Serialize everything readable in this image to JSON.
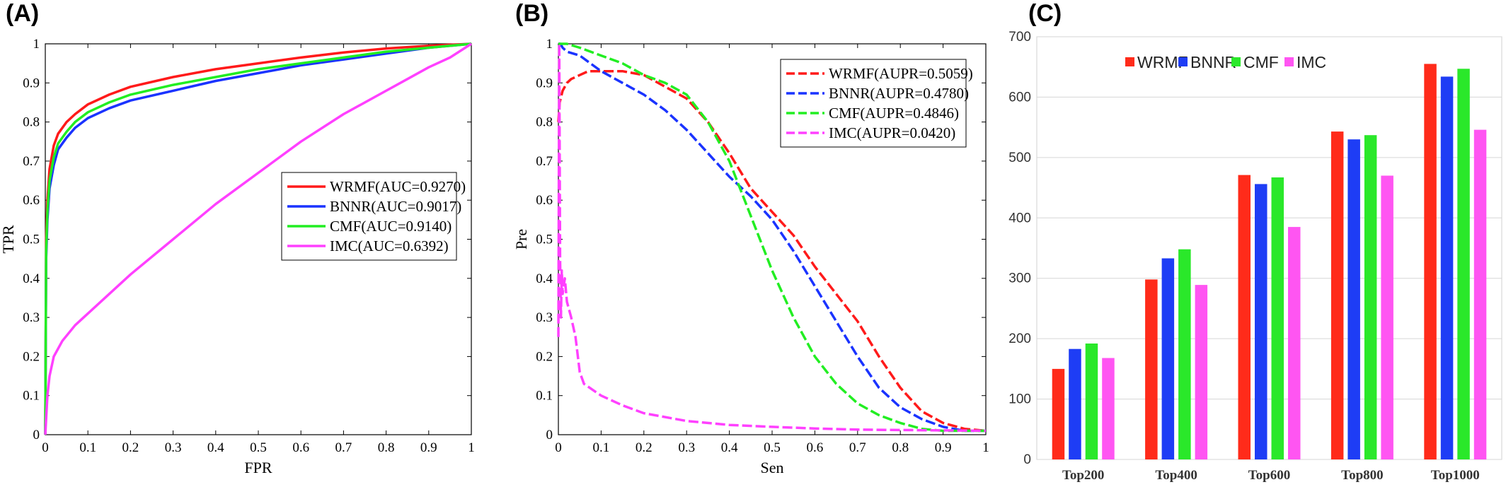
{
  "panel_labels": [
    "(A)",
    "(B)",
    "(C)"
  ],
  "colors": {
    "WRMF": "#ff1a1a",
    "BNNR": "#1a33ff",
    "CMF": "#22ee22",
    "IMC": "#ff40ff",
    "bar_WRMF": "#ff2b1a",
    "bar_BNNR": "#1e3df5",
    "bar_CMF": "#2ae82a",
    "bar_IMC": "#ff55f2"
  },
  "chart_data": [
    {
      "type": "line",
      "panel": "(A)",
      "title": "",
      "xlabel": "FPR",
      "ylabel": "TPR",
      "xlim": [
        0,
        1
      ],
      "ylim": [
        0,
        1
      ],
      "xticks": [
        "0",
        "0.1",
        "0.2",
        "0.3",
        "0.4",
        "0.5",
        "0.6",
        "0.7",
        "0.8",
        "0.9",
        "1"
      ],
      "yticks": [
        "0",
        "0.1",
        "0.2",
        "0.3",
        "0.4",
        "0.5",
        "0.6",
        "0.7",
        "0.8",
        "0.9",
        "1"
      ],
      "grid": false,
      "legend_position": "center-right",
      "series": [
        {
          "name": "WRMF(AUC=0.9270)",
          "key": "WRMF",
          "style": "solid",
          "x": [
            0,
            0.002,
            0.005,
            0.01,
            0.02,
            0.03,
            0.05,
            0.07,
            0.1,
            0.15,
            0.2,
            0.3,
            0.4,
            0.5,
            0.6,
            0.7,
            0.8,
            0.9,
            1.0
          ],
          "y": [
            0,
            0.5,
            0.6,
            0.68,
            0.74,
            0.77,
            0.8,
            0.82,
            0.845,
            0.87,
            0.89,
            0.915,
            0.935,
            0.95,
            0.965,
            0.978,
            0.988,
            0.995,
            1.0
          ]
        },
        {
          "name": "BNNR(AUC=0.9017)",
          "key": "BNNR",
          "style": "solid",
          "x": [
            0,
            0.002,
            0.005,
            0.01,
            0.02,
            0.03,
            0.05,
            0.07,
            0.1,
            0.15,
            0.2,
            0.3,
            0.4,
            0.5,
            0.6,
            0.7,
            0.8,
            0.9,
            1.0
          ],
          "y": [
            0,
            0.45,
            0.55,
            0.63,
            0.69,
            0.73,
            0.76,
            0.785,
            0.81,
            0.835,
            0.855,
            0.88,
            0.905,
            0.925,
            0.945,
            0.96,
            0.975,
            0.99,
            1.0
          ]
        },
        {
          "name": "CMF(AUC=0.9140)",
          "key": "CMF",
          "style": "solid",
          "x": [
            0,
            0.002,
            0.005,
            0.01,
            0.02,
            0.03,
            0.05,
            0.07,
            0.1,
            0.15,
            0.2,
            0.3,
            0.4,
            0.5,
            0.6,
            0.7,
            0.8,
            0.9,
            1.0
          ],
          "y": [
            0,
            0.47,
            0.57,
            0.65,
            0.71,
            0.745,
            0.775,
            0.8,
            0.825,
            0.85,
            0.87,
            0.895,
            0.915,
            0.935,
            0.95,
            0.965,
            0.98,
            0.99,
            1.0
          ]
        },
        {
          "name": "IMC(AUC=0.6392)",
          "key": "IMC",
          "style": "solid",
          "x": [
            0,
            0.005,
            0.01,
            0.02,
            0.04,
            0.07,
            0.1,
            0.15,
            0.2,
            0.3,
            0.4,
            0.5,
            0.6,
            0.7,
            0.8,
            0.85,
            0.9,
            0.95,
            1.0
          ],
          "y": [
            0,
            0.1,
            0.15,
            0.2,
            0.24,
            0.28,
            0.31,
            0.36,
            0.41,
            0.5,
            0.59,
            0.67,
            0.75,
            0.82,
            0.88,
            0.91,
            0.94,
            0.965,
            1.0
          ]
        }
      ]
    },
    {
      "type": "line",
      "panel": "(B)",
      "title": "",
      "xlabel": "Sen",
      "ylabel": "Pre",
      "xlim": [
        0,
        1
      ],
      "ylim": [
        0,
        1
      ],
      "xticks": [
        "0",
        "0.1",
        "0.2",
        "0.3",
        "0.4",
        "0.5",
        "0.6",
        "0.7",
        "0.8",
        "0.9",
        "1"
      ],
      "yticks": [
        "0",
        "0.1",
        "0.2",
        "0.3",
        "0.4",
        "0.5",
        "0.6",
        "0.7",
        "0.8",
        "0.9",
        "1"
      ],
      "grid": false,
      "legend_position": "top-right",
      "series": [
        {
          "name": "WRMF(AUPR=0.5059)",
          "key": "WRMF",
          "style": "dashed",
          "x": [
            0,
            0.003,
            0.01,
            0.02,
            0.03,
            0.05,
            0.07,
            0.1,
            0.15,
            0.2,
            0.25,
            0.3,
            0.35,
            0.4,
            0.45,
            0.5,
            0.55,
            0.6,
            0.65,
            0.7,
            0.75,
            0.8,
            0.85,
            0.9,
            0.95,
            1.0
          ],
          "y": [
            0.8,
            0.85,
            0.88,
            0.9,
            0.91,
            0.92,
            0.93,
            0.93,
            0.93,
            0.92,
            0.89,
            0.86,
            0.8,
            0.72,
            0.63,
            0.57,
            0.51,
            0.43,
            0.36,
            0.29,
            0.2,
            0.12,
            0.06,
            0.03,
            0.015,
            0.01
          ]
        },
        {
          "name": "BNNR(AUPR=0.4780)",
          "key": "BNNR",
          "style": "dashed",
          "x": [
            0,
            0.005,
            0.01,
            0.02,
            0.05,
            0.1,
            0.15,
            0.2,
            0.25,
            0.3,
            0.35,
            0.4,
            0.45,
            0.5,
            0.55,
            0.6,
            0.65,
            0.7,
            0.75,
            0.8,
            0.85,
            0.9,
            0.95,
            1.0
          ],
          "y": [
            1.0,
            1.0,
            0.99,
            0.98,
            0.97,
            0.93,
            0.9,
            0.87,
            0.83,
            0.78,
            0.72,
            0.66,
            0.61,
            0.55,
            0.47,
            0.38,
            0.29,
            0.2,
            0.12,
            0.07,
            0.04,
            0.02,
            0.01,
            0.01
          ]
        },
        {
          "name": "CMF(AUPR=0.4846)",
          "key": "CMF",
          "style": "dashed",
          "x": [
            0,
            0.01,
            0.02,
            0.05,
            0.1,
            0.15,
            0.2,
            0.25,
            0.3,
            0.35,
            0.4,
            0.45,
            0.5,
            0.55,
            0.6,
            0.65,
            0.7,
            0.75,
            0.8,
            0.85,
            0.9,
            0.95,
            1.0
          ],
          "y": [
            1.0,
            1.0,
            1.0,
            0.99,
            0.97,
            0.95,
            0.92,
            0.9,
            0.87,
            0.8,
            0.7,
            0.56,
            0.42,
            0.3,
            0.2,
            0.13,
            0.08,
            0.05,
            0.03,
            0.015,
            0.01,
            0.01,
            0.01
          ]
        },
        {
          "name": "IMC(AUPR=0.0420)",
          "key": "IMC",
          "style": "dashed",
          "x": [
            0,
            0.002,
            0.004,
            0.006,
            0.008,
            0.01,
            0.015,
            0.02,
            0.03,
            0.04,
            0.05,
            0.06,
            0.08,
            0.1,
            0.15,
            0.2,
            0.3,
            0.4,
            0.5,
            0.6,
            0.7,
            0.8,
            0.9,
            1.0
          ],
          "y": [
            0.25,
            1.0,
            0.45,
            0.3,
            0.42,
            0.36,
            0.4,
            0.34,
            0.3,
            0.25,
            0.16,
            0.13,
            0.115,
            0.1,
            0.075,
            0.055,
            0.035,
            0.025,
            0.02,
            0.016,
            0.013,
            0.012,
            0.011,
            0.01
          ]
        }
      ]
    },
    {
      "type": "bar",
      "panel": "(C)",
      "title": "",
      "xlabel": "",
      "ylabel": "",
      "ylim": [
        0,
        700
      ],
      "yticks": [
        "0",
        "100",
        "200",
        "300",
        "400",
        "500",
        "600",
        "700"
      ],
      "grid": true,
      "legend_position": "top-left",
      "categories": [
        "Top200",
        "Top400",
        "Top600",
        "Top800",
        "Top1000"
      ],
      "series": [
        {
          "name": "WRMF",
          "key": "bar_WRMF",
          "values": [
            150,
            298,
            471,
            543,
            655
          ]
        },
        {
          "name": "BNNR",
          "key": "bar_BNNR",
          "values": [
            183,
            333,
            456,
            530,
            634
          ]
        },
        {
          "name": "CMF",
          "key": "bar_CMF",
          "values": [
            192,
            348,
            467,
            537,
            647
          ]
        },
        {
          "name": "IMC",
          "key": "bar_IMC",
          "values": [
            168,
            289,
            385,
            470,
            546
          ]
        }
      ]
    }
  ]
}
